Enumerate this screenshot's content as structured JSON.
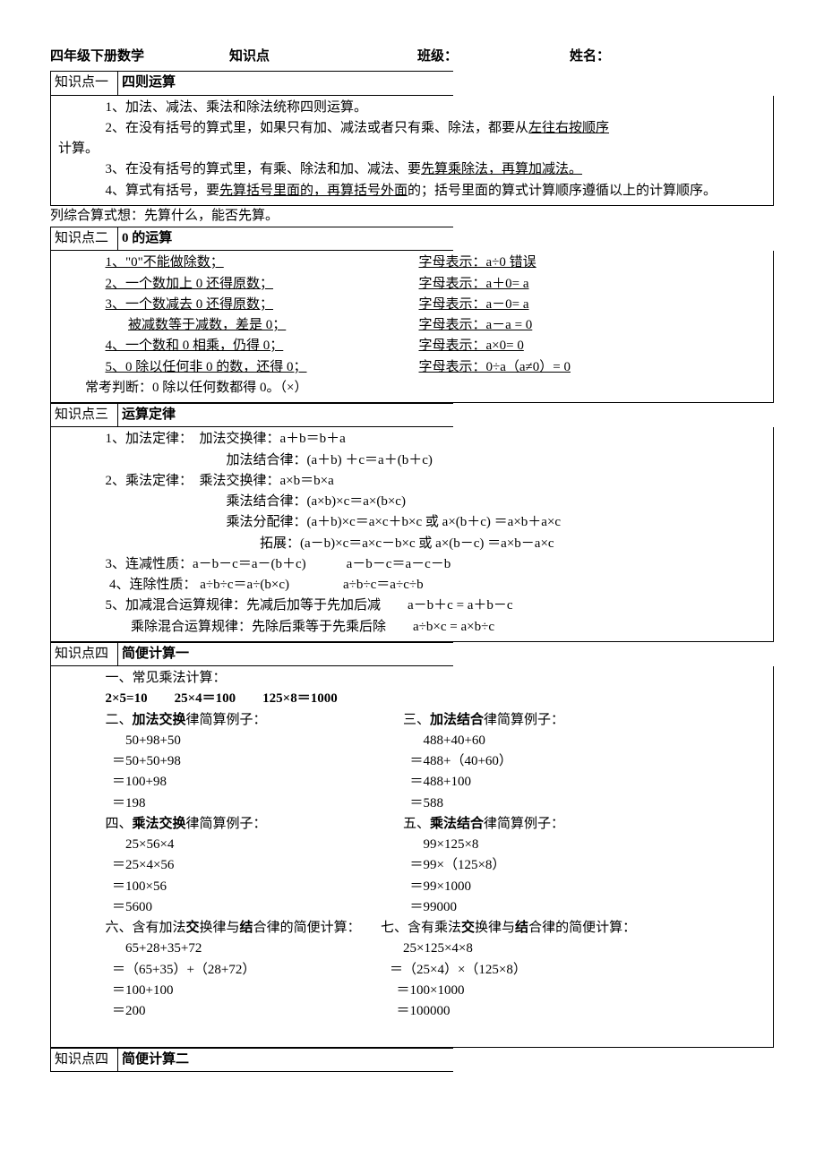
{
  "header": {
    "subject": "四年级下册数学",
    "label_topic": "知识点",
    "label_class": "班级：",
    "label_name": "姓名："
  },
  "s1": {
    "tag": "知识点一",
    "title": "四则运算",
    "p1": "1、加法、减法、乘法和除法统称四则运算。",
    "p2a": "2、在没有括号的算式里，如果只有加、减法或者只有乘、除法，都要从",
    "p2u": "左往右按顺序",
    "p2b": "计算。",
    "p3a": "3、在没有括号的算式里，有乘、除法和加、减法、要",
    "p3u": "先算乘除法，再算加减法。",
    "p4a": "4、算式有括号，要",
    "p4u": "先算括号里面的，再算括号外面",
    "p4b": "的；括号里面的算式计算顺序遵循以上的计算顺序。",
    "note": "列综合算式想：先算什么，能否先算。"
  },
  "s2": {
    "tag": "知识点二",
    "title": "0 的运算",
    "r1l": "1、\"0\"不能做除数；",
    "r1r": "字母表示：a÷0 错误",
    "r2l": "2、一个数加上 0 还得原数；",
    "r2r": "字母表示：a＋0= a",
    "r3l": "3、一个数减去 0 还得原数；",
    "r3r": "字母表示：a－0= a",
    "r3bl": "被减数等于减数，差是 0；",
    "r3br": "字母表示：a－a = 0",
    "r4l": "4、一个数和 0 相乘，仍得 0；",
    "r4r": "字母表示：a×0= 0",
    "r5l": "5、0 除以任何非 0 的数，还得 0；",
    "r5r": "字母表示：0÷a（a≠0）= 0",
    "judge": "常考判断：0 除以任何数都得 0。（×）"
  },
  "s3": {
    "tag": "知识点三",
    "title": "运算定律",
    "l1": "1、加法定律：　加法交换律：a＋b＝b＋a",
    "l1b": "加法结合律：(a＋b) ＋c＝a＋(b＋c)",
    "l2": "2、乘法定律：　乘法交换律：a×b＝b×a",
    "l2b": "乘法结合律：(a×b)×c＝a×(b×c)",
    "l2c": "乘法分配律：(a＋b)×c＝a×c＋b×c  或  a×(b＋c) ＝a×b＋a×c",
    "l2d": "拓展：(a－b)×c＝a×c－b×c  或  a×(b－c) ＝a×b－a×c",
    "l3": "3、连减性质：a－b－c＝a－(b＋c)　　　a－b－c＝a－c－b",
    "l4": "4、连除性质：  a÷b÷c＝a÷(b×c)　　　　a÷b÷c＝a÷c÷b",
    "l5": "5、加减混合运算规律：先减后加等于先加后减　　a－b＋c = a＋b－c",
    "l5b": "乘除混合运算规律：先除后乘等于先乘后除　　a÷b×c = a×b÷c"
  },
  "s4": {
    "tag": "知识点四",
    "title": "简便计算一",
    "h1": "一、常见乘法计算：",
    "formula": "2×5=10　　25×4＝100　　125×8＝1000",
    "h2l": "二、加法交换律简算例子：",
    "h2r": "三、加法结合律简算例子：",
    "e2l1": "50+98+50",
    "e2l2": "＝50+50+98",
    "e2l3": "＝100+98",
    "e2l4": "＝198",
    "e2r1": "488+40+60",
    "e2r2": "＝488+（40+60）",
    "e2r3": "＝488+100",
    "e2r4": "＝588",
    "h3l": "四、乘法交换律简算例子：",
    "h3r": "五、乘法结合律简算例子：",
    "e3l1": "25×56×4",
    "e3l2": "＝25×4×56",
    "e3l3": "＝100×56",
    "e3l4": "＝5600",
    "e3r1": "99×125×8",
    "e3r2": "＝99×（125×8）",
    "e3r3": "＝99×1000",
    "e3r4": "＝99000",
    "h4l": "六、含有加法交换律与结合律的简便计算：",
    "h4r": "七、含有乘法交换律与结合律的简便计算：",
    "e4l1": "65+28+35+72",
    "e4l2": "＝（65+35）+（28+72）",
    "e4l3": "＝100+100",
    "e4l4": "＝200",
    "e4r1": "25×125×4×8",
    "e4r2": "＝（25×4）×（125×8）",
    "e4r3": "＝100×1000",
    "e4r4": "＝100000"
  },
  "s5": {
    "tag": "知识点四",
    "title": "简便计算二"
  }
}
